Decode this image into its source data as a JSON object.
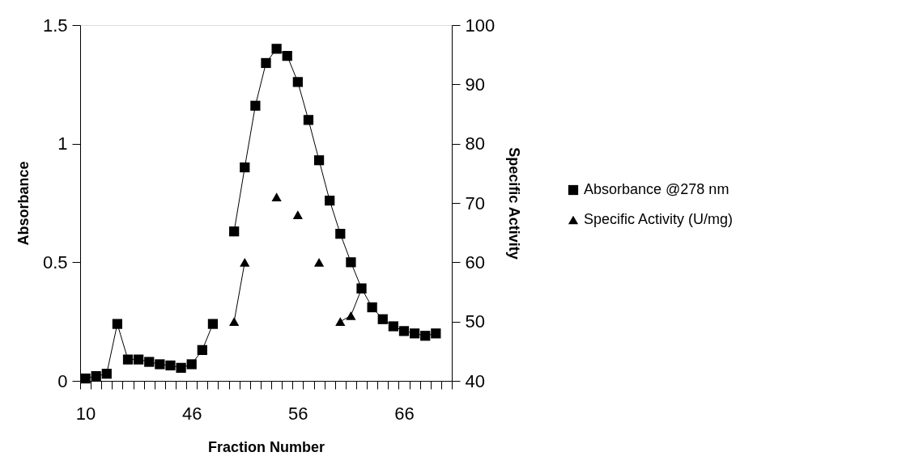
{
  "chart_data": {
    "type": "line",
    "xlabel": "Fraction Number",
    "ylabel": "Absorbance",
    "y2label": "Specific Activity",
    "categories": [
      "10",
      null,
      null,
      null,
      null,
      null,
      null,
      null,
      null,
      null,
      "46",
      null,
      null,
      null,
      null,
      null,
      null,
      null,
      null,
      null,
      "56",
      null,
      null,
      null,
      null,
      null,
      null,
      null,
      null,
      null,
      "66",
      null,
      null,
      null,
      null
    ],
    "ylim": [
      0,
      1.5
    ],
    "yticks": [
      0,
      0.5,
      1,
      1.5
    ],
    "y2lim": [
      40,
      100
    ],
    "y2ticks": [
      40,
      50,
      60,
      70,
      80,
      90,
      100
    ],
    "grid": false,
    "legend": "right",
    "line_style": "solid",
    "series": [
      {
        "name": "Absorbance @278 nm",
        "color": "#000000",
        "marker": "square",
        "values": [
          0.01,
          0.02,
          0.03,
          0.24,
          0.09,
          0.09,
          0.08,
          0.07,
          0.065,
          0.055,
          0.07,
          0.13,
          0.24,
          null,
          0.63,
          0.9,
          1.16,
          1.34,
          1.4,
          1.37,
          1.26,
          1.1,
          0.93,
          0.76,
          0.62,
          0.5,
          0.39,
          0.31,
          0.26,
          0.23,
          0.21,
          0.2,
          0.19,
          0.2,
          null
        ]
      },
      {
        "name": "Specific Activity (U/mg)",
        "color": "#000000",
        "marker": "triangle",
        "axis": "y2",
        "values": [
          null,
          null,
          null,
          null,
          null,
          null,
          null,
          null,
          null,
          null,
          null,
          null,
          null,
          null,
          50,
          60,
          null,
          null,
          71,
          null,
          68,
          null,
          60,
          null,
          50,
          51,
          55.5,
          null,
          null,
          null,
          null,
          null,
          null,
          null,
          null
        ]
      }
    ]
  }
}
